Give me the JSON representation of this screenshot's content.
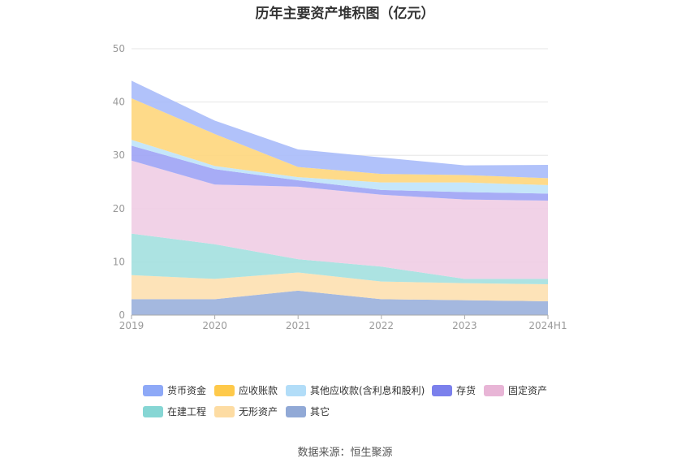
{
  "chart_data": {
    "type": "area",
    "stacked": true,
    "title": "历年主要资产堆积图（亿元）",
    "categories": [
      "2019",
      "2020",
      "2021",
      "2022",
      "2023",
      "2024H1"
    ],
    "ylim": [
      0,
      50
    ],
    "yticks": [
      0,
      10,
      20,
      30,
      40,
      50
    ],
    "grid": true,
    "legend_position": "bottom",
    "series": [
      {
        "name": "其它",
        "color": "#9ab0dc",
        "values": [
          3.0,
          3.0,
          4.6,
          3.0,
          2.8,
          2.6
        ]
      },
      {
        "name": "无形资产",
        "color": "#fde0b0",
        "values": [
          4.5,
          3.8,
          3.4,
          3.3,
          3.2,
          3.2
        ]
      },
      {
        "name": "在建工程",
        "color": "#a3e0df",
        "values": [
          7.8,
          6.5,
          2.5,
          2.8,
          0.8,
          1.0
        ]
      },
      {
        "name": "固定资产",
        "color": "#f0cde4",
        "values": [
          13.7,
          11.2,
          13.6,
          13.5,
          14.9,
          14.7
        ]
      },
      {
        "name": "存货",
        "color": "#9da3f5",
        "values": [
          2.8,
          2.9,
          1.2,
          0.9,
          1.4,
          1.3
        ]
      },
      {
        "name": "其他应收款(含利息和股利)",
        "color": "#bfe3fa",
        "values": [
          1.1,
          0.6,
          0.6,
          1.4,
          1.8,
          1.6
        ]
      },
      {
        "name": "应收账款",
        "color": "#fed67c",
        "values": [
          7.8,
          6.0,
          1.9,
          1.6,
          1.4,
          1.3
        ]
      },
      {
        "name": "货币资金",
        "color": "#a9bbfa",
        "values": [
          3.3,
          2.5,
          3.3,
          3.1,
          1.8,
          2.5
        ]
      }
    ],
    "legend_order": [
      "货币资金",
      "应收账款",
      "其他应收款(含利息和股利)",
      "存货",
      "固定资产",
      "在建工程",
      "无形资产",
      "其它"
    ]
  },
  "legend_colors": {
    "货币资金": "#8ea9f7",
    "应收账款": "#fec94a",
    "其他应收款(含利息和股利)": "#b2ddf8",
    "存货": "#7b80ec",
    "固定资产": "#e8b5d6",
    "在建工程": "#86d6d4",
    "无形资产": "#fddca3",
    "其它": "#91a9d6"
  },
  "source": "数据来源：恒生聚源"
}
